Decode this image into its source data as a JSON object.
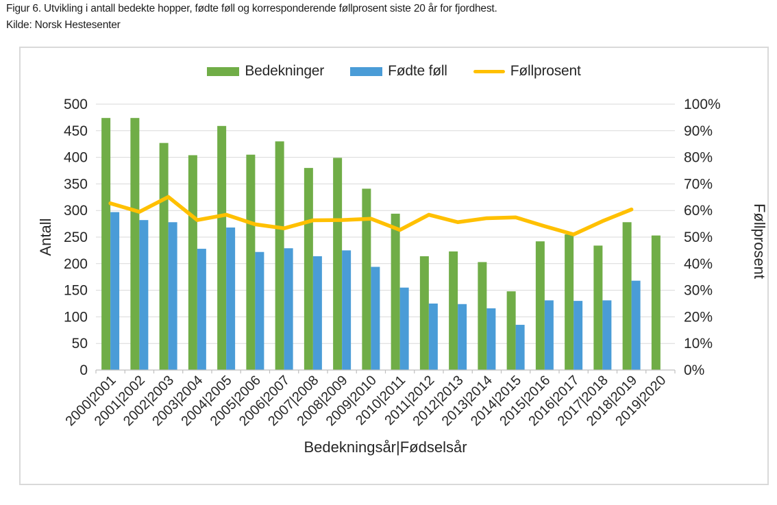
{
  "caption": {
    "line1": "Figur 6. Utvikling i antall bedekte hopper, fødte føll og korresponderende føllprosent siste 20 år for fjordhest.",
    "line2": "Kilde: Norsk Hestesenter"
  },
  "colors": {
    "bedekninger_green": "#70AD47",
    "fodte_foll_blue": "#4A9CD7",
    "follprosent_yellow": "#FFC000",
    "gridline": "#D9D9D9",
    "axis_line": "#BFBFBF",
    "text": "#262626",
    "chart_border": "#D9D9D9"
  },
  "chart_data": {
    "type": "bar",
    "subtype": "combo-bar-line",
    "title": "",
    "categories": [
      "2000|2001",
      "2001|2002",
      "2002|2003",
      "2003|2004",
      "2004|2005",
      "2005|2006",
      "2006|2007",
      "2007|2008",
      "2008|2009",
      "2009|2010",
      "2010|2011",
      "2011|2012",
      "2012|2013",
      "2013|2014",
      "2014|2015",
      "2015|2016",
      "2016|2017",
      "2017|2018",
      "2018|2019",
      "2019|2020"
    ],
    "series": [
      {
        "name": "Bedekninger",
        "type": "bar",
        "axis": "left",
        "color": "#70AD47",
        "values": [
          474,
          474,
          427,
          404,
          459,
          405,
          430,
          380,
          399,
          341,
          294,
          214,
          223,
          203,
          148,
          242,
          255,
          234,
          278,
          253
        ]
      },
      {
        "name": "Fødte føll",
        "type": "bar",
        "axis": "left",
        "color": "#4A9CD7",
        "values": [
          297,
          282,
          278,
          228,
          268,
          222,
          229,
          214,
          225,
          194,
          155,
          125,
          124,
          116,
          85,
          131,
          130,
          131,
          168,
          null
        ]
      },
      {
        "name": "Føllprosent",
        "type": "line",
        "axis": "right",
        "color": "#FFC000",
        "values": [
          62.7,
          59.5,
          65.1,
          56.4,
          58.4,
          54.8,
          53.3,
          56.3,
          56.4,
          56.9,
          52.7,
          58.4,
          55.6,
          57.1,
          57.4,
          54.1,
          51.0,
          56.0,
          60.4,
          null
        ]
      }
    ],
    "left_axis": {
      "title": "Antall",
      "min": 0,
      "max": 500,
      "step": 50,
      "suffix": ""
    },
    "right_axis": {
      "title": "Føllprosent",
      "min": 0,
      "max": 100,
      "step": 10,
      "suffix": "%"
    },
    "x_axis": {
      "title": "Bedekningsår|Fødselsår"
    },
    "grid": true,
    "legend_position": "top"
  }
}
